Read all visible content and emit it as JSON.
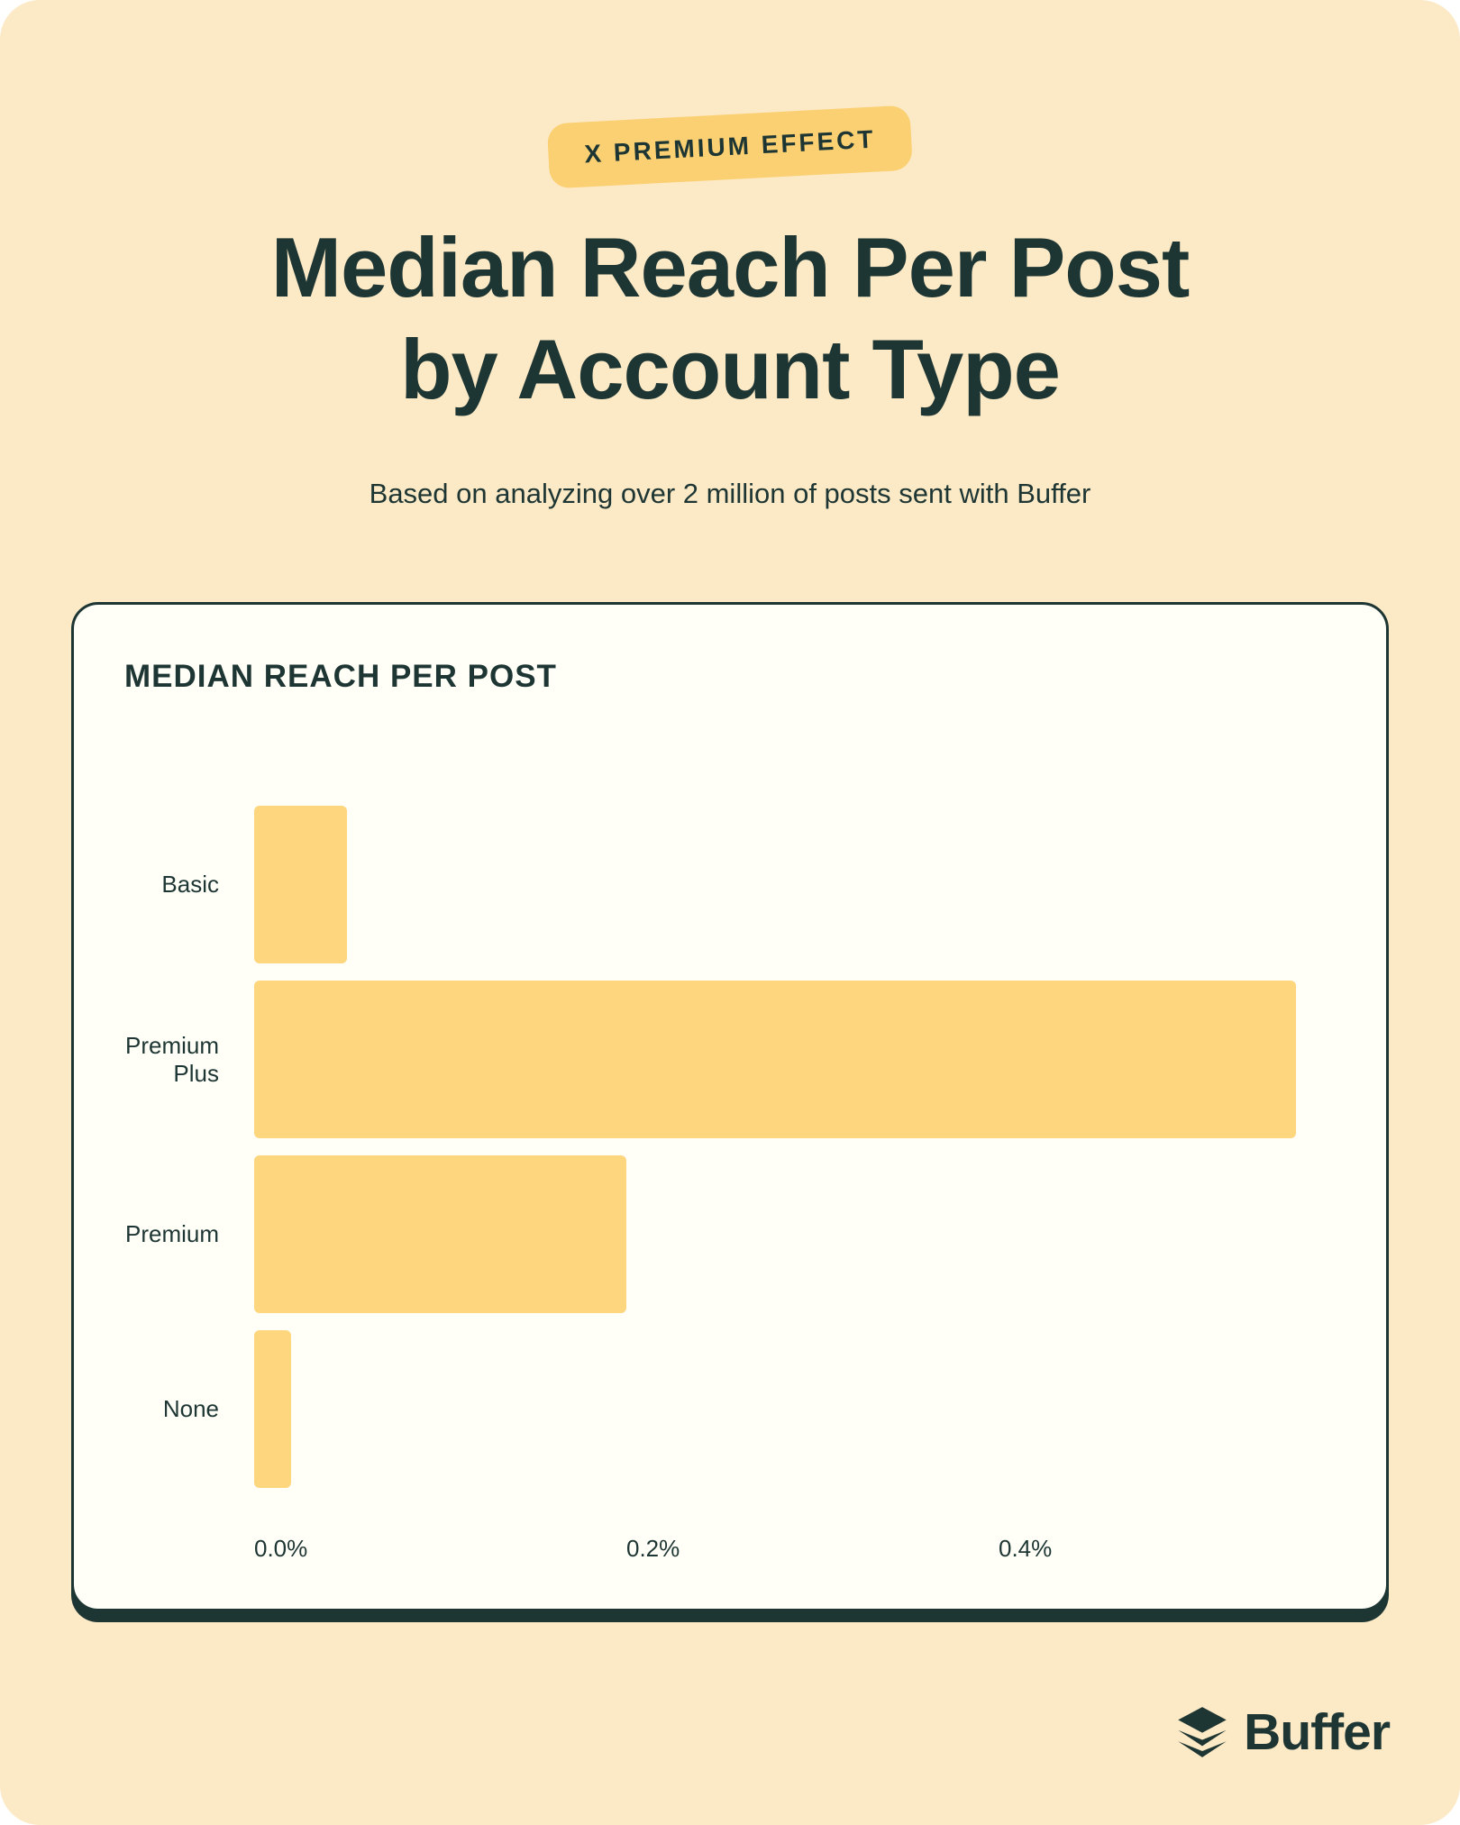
{
  "page": {
    "badge_label": "X PREMIUM EFFECT",
    "title_line1": "Median Reach Per Post",
    "title_line2": "by Account Type",
    "subtitle": "Based on analyzing over 2 million of posts sent with Buffer",
    "brand_name": "Buffer"
  },
  "card": {
    "header": "MEDIAN REACH PER POST"
  },
  "chart_data": {
    "type": "bar",
    "orientation": "horizontal",
    "title": "MEDIAN REACH PER POST",
    "categories": [
      "Basic",
      "Premium Plus",
      "Premium",
      "None"
    ],
    "values": [
      0.05,
      0.56,
      0.2,
      0.02
    ],
    "unit": "%",
    "xlabel": "",
    "ylabel": "",
    "xlim": [
      0,
      0.608
    ],
    "x_ticks": [
      {
        "value": 0.0,
        "label": "0.0%"
      },
      {
        "value": 0.2,
        "label": "0.2%"
      },
      {
        "value": 0.4,
        "label": "0.4%"
      }
    ],
    "grid": false,
    "legend": "none",
    "bar_color": "#FDD67E"
  },
  "colors": {
    "page_background": "#FCE9C6",
    "card_background": "#FFFEF7",
    "accent_yellow": "#FBD072",
    "bar_yellow": "#FDD67E",
    "dark_green": "#1E3633"
  }
}
